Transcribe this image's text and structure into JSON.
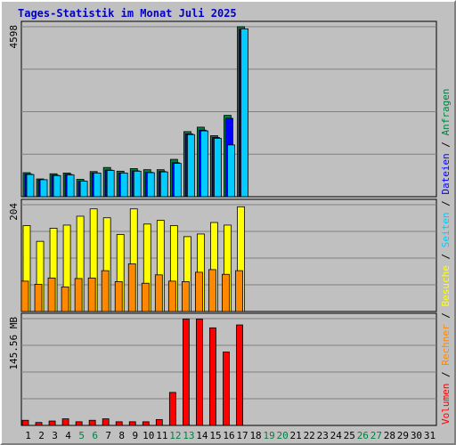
{
  "chart_data": {
    "type": "bar",
    "title": "Tages-Statistik im Monat Juli 2025",
    "categories": [
      "1",
      "2",
      "3",
      "4",
      "5",
      "6",
      "7",
      "8",
      "9",
      "10",
      "11",
      "12",
      "13",
      "14",
      "15",
      "16",
      "17",
      "18",
      "19",
      "20",
      "21",
      "22",
      "23",
      "24",
      "25",
      "26",
      "27",
      "28",
      "29",
      "30",
      "31"
    ],
    "weekend_days": [
      "5",
      "6",
      "12",
      "13",
      "19",
      "20",
      "26",
      "27"
    ],
    "grid": true,
    "side_legend": {
      "items": [
        {
          "label": "Volumen",
          "color": "#ff0000"
        },
        {
          "label": " / ",
          "color": "#000000"
        },
        {
          "label": "Rechner",
          "color": "#ff8800"
        },
        {
          "label": " / ",
          "color": "#000000"
        },
        {
          "label": "Besuche",
          "color": "#ffff00"
        },
        {
          "label": " / ",
          "color": "#000000"
        },
        {
          "label": "Seiten",
          "color": "#00ccff"
        },
        {
          "label": " / ",
          "color": "#000000"
        },
        {
          "label": "Dateien",
          "color": "#0000ff"
        },
        {
          "label": " / ",
          "color": "#000000"
        },
        {
          "label": "Anfragen",
          "color": "#008040"
        }
      ]
    },
    "panels": [
      {
        "id": "hits",
        "max_label": "4598",
        "ylim": [
          0,
          4598
        ],
        "series": [
          {
            "name": "Anfragen",
            "color": "#008040",
            "values": [
              650,
              480,
              620,
              640,
              470,
              680,
              790,
              690,
              760,
              730,
              730,
              1010,
              1760,
              1880,
              1650,
              2200,
              4598,
              0,
              0,
              0,
              0,
              0,
              0,
              0,
              0,
              0,
              0,
              0,
              0,
              0,
              0
            ]
          },
          {
            "name": "Dateien",
            "color": "#0000ff",
            "values": [
              610,
              450,
              580,
              600,
              420,
              640,
              720,
              640,
              700,
              660,
              680,
              920,
              1700,
              1800,
              1600,
              2120,
              4530,
              0,
              0,
              0,
              0,
              0,
              0,
              0,
              0,
              0,
              0,
              0,
              0,
              0,
              0
            ]
          },
          {
            "name": "Seiten",
            "color": "#00ccff",
            "values": [
              600,
              460,
              570,
              590,
              420,
              640,
              710,
              640,
              690,
              650,
              670,
              900,
              1680,
              1780,
              1580,
              1400,
              4540,
              0,
              0,
              0,
              0,
              0,
              0,
              0,
              0,
              0,
              0,
              0,
              0,
              0,
              0
            ]
          }
        ]
      },
      {
        "id": "visits",
        "max_label": "204",
        "ylim": [
          0,
          204
        ],
        "series": [
          {
            "name": "Besuche",
            "color": "#ffff00",
            "values": [
              164,
              134,
              159,
              165,
              182,
              196,
              179,
              147,
              196,
              167,
              174,
              164,
              143,
              148,
              170,
              165,
              200,
              0,
              0,
              0,
              0,
              0,
              0,
              0,
              0,
              0,
              0,
              0,
              0,
              0,
              0
            ]
          },
          {
            "name": "Rechner",
            "color": "#ff8800",
            "values": [
              58,
              52,
              64,
              47,
              63,
              64,
              78,
              57,
              91,
              54,
              70,
              58,
              57,
              75,
              80,
              71,
              78,
              0,
              0,
              0,
              0,
              0,
              0,
              0,
              0,
              0,
              0,
              0,
              0,
              0,
              0
            ]
          }
        ]
      },
      {
        "id": "volume",
        "max_label": "145.56 MB",
        "ylim": [
          0,
          145.56
        ],
        "series": [
          {
            "name": "Volumen",
            "color": "#ff0000",
            "values": [
              7,
              4,
              6,
              9,
              5,
              7,
              9,
              5,
              5,
              5,
              8,
              45,
              145,
              145,
              133,
              100,
              137,
              0,
              0,
              0,
              0,
              0,
              0,
              0,
              0,
              0,
              0,
              0,
              0,
              0,
              0
            ]
          }
        ]
      }
    ]
  }
}
